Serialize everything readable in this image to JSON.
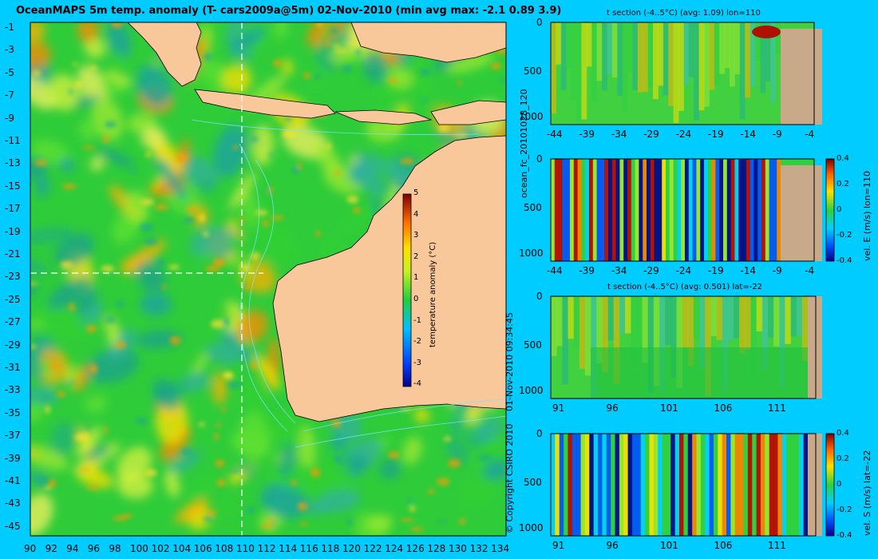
{
  "map": {
    "title": "OceanMAPS 5m temp. anomaly (T- cars2009a@5m) 02-Nov-2010 (min avg max: -2.1 0.89 3.9)",
    "x_ticks": [
      "90",
      "92",
      "94",
      "96",
      "98",
      "100",
      "102",
      "104",
      "106",
      "108",
      "110",
      "112",
      "114",
      "116",
      "118",
      "120",
      "122",
      "124",
      "126",
      "128",
      "130",
      "132",
      "134"
    ],
    "y_ticks": [
      "-1",
      "-3",
      "-5",
      "-7",
      "-9",
      "-11",
      "-13",
      "-15",
      "-17",
      "-19",
      "-21",
      "-23",
      "-25",
      "-27",
      "-29",
      "-31",
      "-33",
      "-35",
      "-37",
      "-39",
      "-41",
      "-43",
      "-45"
    ],
    "colorbar": {
      "label": "temperature anomaly (°C)",
      "ticks": [
        "5",
        "4",
        "3",
        "2",
        "1",
        "0",
        "-1",
        "-2",
        "-3",
        "-4"
      ]
    },
    "section_line_lon": 110,
    "section_line_lat": -22
  },
  "side_text": {
    "run_id": "ocean_fc_20101028_120",
    "timestamp": "01-Nov-2010 09:34:45",
    "copyright": "© Copyright CSIRO 2010"
  },
  "panels": [
    {
      "title": "t section (-4..5°C) (avg: 1.09) lon=110",
      "y_ticks": [
        "0",
        "500",
        "1000"
      ],
      "x_ticks": [
        "-44",
        "-39",
        "-34",
        "-29",
        "-24",
        "-19",
        "-14",
        "-9",
        "-4"
      ],
      "colorbar": null
    },
    {
      "title": "",
      "y_ticks": [
        "0",
        "500",
        "1000"
      ],
      "x_ticks": [
        "-44",
        "-39",
        "-34",
        "-29",
        "-24",
        "-19",
        "-14",
        "-9",
        "-4"
      ],
      "colorbar": {
        "label": "vel. E (m/s) lon=110",
        "ticks": [
          "0.4",
          "0.2",
          "0",
          "-0.2",
          "-0.4"
        ]
      }
    },
    {
      "title": "t section (-4..5°C) (avg: 0.501) lat=-22",
      "y_ticks": [
        "0",
        "500",
        "1000"
      ],
      "x_ticks": [
        "91",
        "96",
        "101",
        "106",
        "111"
      ],
      "colorbar": null
    },
    {
      "title": "",
      "y_ticks": [
        "0",
        "500",
        "1000"
      ],
      "x_ticks": [
        "91",
        "96",
        "101",
        "106",
        "111"
      ],
      "colorbar": {
        "label": "vel. S (m/s) lat=-22",
        "ticks": [
          "0.4",
          "0.2",
          "0",
          "-0.2",
          "-0.4"
        ]
      }
    }
  ],
  "colors": {
    "background": "#00ccff",
    "land": "#f8c89a",
    "section_land": "#c8aa8a",
    "ocean_base": "#2fcc3a"
  },
  "chart_data": [
    {
      "type": "heatmap",
      "title": "OceanMAPS 5m temp. anomaly (T- cars2009a@5m) 02-Nov-2010 (min avg max: -2.1 0.89 3.9)",
      "xlabel": "",
      "ylabel": "",
      "xlim": [
        90,
        135
      ],
      "ylim": [
        -45,
        0
      ],
      "value_label": "temperature anomaly (°C)",
      "value_range": [
        -4,
        5
      ],
      "min": -2.1,
      "avg": 0.89,
      "max": 3.9
    },
    {
      "type": "heatmap",
      "title": "t section (-4..5°C) (avg: 1.09) lon=110",
      "xlim": [
        -45,
        -2
      ],
      "ylim": [
        1050,
        0
      ],
      "value_range": [
        -4,
        5
      ],
      "avg": 1.09
    },
    {
      "type": "heatmap",
      "title": "",
      "xlim": [
        -45,
        -2
      ],
      "ylim": [
        1050,
        0
      ],
      "value_label": "vel. E (m/s) lon=110",
      "value_range": [
        -0.45,
        0.45
      ]
    },
    {
      "type": "heatmap",
      "title": "t section (-4..5°C) (avg: 0.501) lat=-22",
      "xlim": [
        90,
        115
      ],
      "ylim": [
        1050,
        0
      ],
      "value_range": [
        -4,
        5
      ],
      "avg": 0.501
    },
    {
      "type": "heatmap",
      "title": "",
      "xlim": [
        90,
        115
      ],
      "ylim": [
        1050,
        0
      ],
      "value_label": "vel. S (m/s) lat=-22",
      "value_range": [
        -0.45,
        0.45
      ]
    }
  ]
}
